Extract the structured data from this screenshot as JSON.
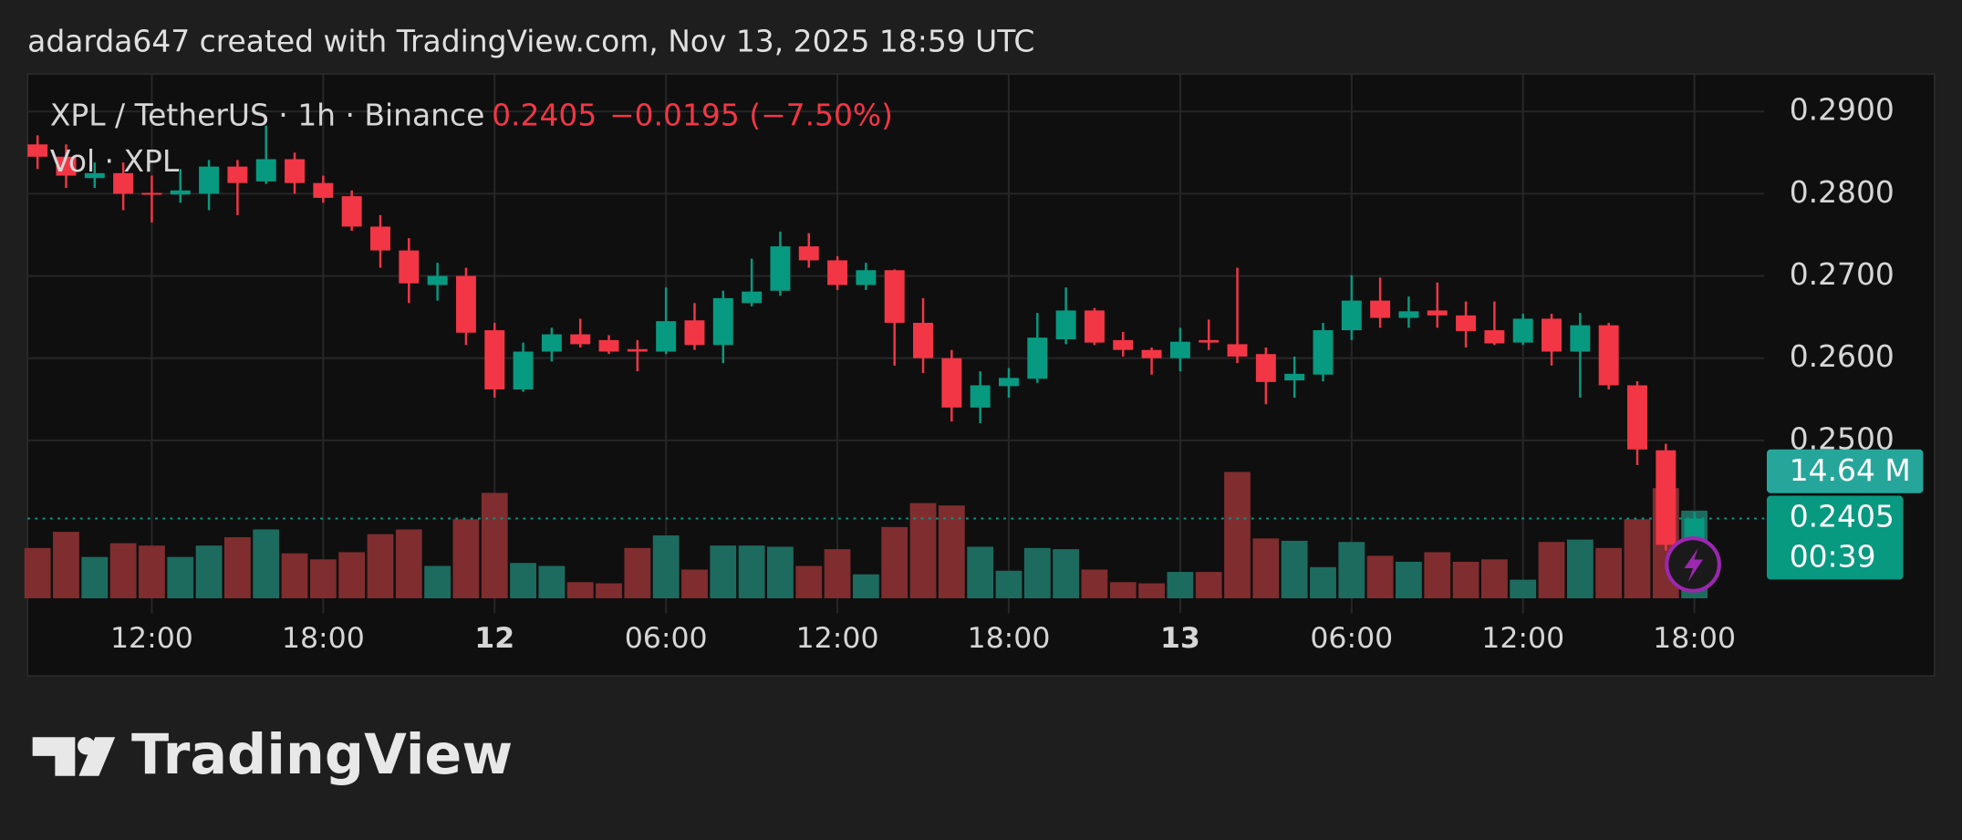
{
  "header": {
    "text": "adarda647 created with TradingView.com, Nov 13, 2025 18:59 UTC"
  },
  "footer": {
    "logo_text": "TradingView"
  },
  "chart_data": {
    "type": "candlestick",
    "title": "XPL / TetherUS · 1h · Binance",
    "change_label": "−0.0195 (−7.50%)",
    "countdown": "00:39",
    "up_color": "#089981",
    "down_color": "#f23645",
    "grid": true,
    "categories": [
      null,
      null,
      null,
      null,
      "12:00",
      null,
      null,
      null,
      null,
      null,
      "18:00",
      null,
      null,
      null,
      null,
      null,
      "12",
      null,
      null,
      null,
      null,
      null,
      "06:00",
      null,
      null,
      null,
      null,
      null,
      "12:00",
      null,
      null,
      null,
      null,
      null,
      "18:00",
      null,
      null,
      null,
      null,
      null,
      "13",
      null,
      null,
      null,
      null,
      null,
      "06:00",
      null,
      null,
      null,
      null,
      null,
      "12:00",
      null,
      null,
      null,
      null,
      null,
      "18:00"
    ],
    "open": [
      0.286,
      0.2845,
      0.2819,
      0.2825,
      0.2801,
      0.2799,
      0.28,
      0.2833,
      0.2815,
      0.2842,
      0.2813,
      0.2797,
      0.276,
      0.2731,
      0.2689,
      0.27,
      0.2634,
      0.2562,
      0.2608,
      0.2629,
      0.2622,
      0.2611,
      0.2608,
      0.2646,
      0.2616,
      0.2667,
      0.2682,
      0.2736,
      0.2719,
      0.2689,
      0.2707,
      0.2643,
      0.26,
      0.254,
      0.2566,
      0.2575,
      0.2623,
      0.2658,
      0.2622,
      0.261,
      0.26,
      0.2622,
      0.2617,
      0.2605,
      0.2573,
      0.258,
      0.2634,
      0.267,
      0.2649,
      0.2658,
      0.2652,
      0.2634,
      0.2619,
      0.2648,
      0.2608,
      0.264,
      0.2567,
      0.2488,
      0.2373
    ],
    "high": [
      0.2871,
      0.286,
      0.2838,
      0.2838,
      0.2822,
      0.283,
      0.2841,
      0.2841,
      0.2883,
      0.285,
      0.2822,
      0.2804,
      0.2774,
      0.2746,
      0.2716,
      0.271,
      0.2643,
      0.2619,
      0.2637,
      0.2648,
      0.2628,
      0.2622,
      0.2686,
      0.2667,
      0.2682,
      0.2721,
      0.2754,
      0.2752,
      0.2724,
      0.2716,
      0.2708,
      0.2673,
      0.261,
      0.2584,
      0.2588,
      0.2655,
      0.2686,
      0.2661,
      0.2632,
      0.2613,
      0.2637,
      0.2647,
      0.271,
      0.2613,
      0.2602,
      0.2643,
      0.2701,
      0.2698,
      0.2675,
      0.2692,
      0.2669,
      0.2669,
      0.2654,
      0.2654,
      0.2655,
      0.2643,
      0.2572,
      0.2496,
      0.2413
    ],
    "low": [
      0.283,
      0.2807,
      0.2807,
      0.278,
      0.2765,
      0.2789,
      0.278,
      0.2774,
      0.2812,
      0.28,
      0.2789,
      0.2755,
      0.271,
      0.2667,
      0.267,
      0.2616,
      0.2552,
      0.2559,
      0.2596,
      0.2613,
      0.2605,
      0.2584,
      0.2605,
      0.261,
      0.2594,
      0.2663,
      0.2676,
      0.271,
      0.2683,
      0.2683,
      0.2591,
      0.2582,
      0.2523,
      0.2521,
      0.2552,
      0.257,
      0.2617,
      0.2616,
      0.2602,
      0.258,
      0.2584,
      0.261,
      0.2594,
      0.2544,
      0.2552,
      0.2572,
      0.2622,
      0.2637,
      0.2637,
      0.2637,
      0.2613,
      0.2616,
      0.2616,
      0.2591,
      0.2552,
      0.2562,
      0.247,
      0.2366,
      0.2366
    ],
    "close": [
      0.2845,
      0.2822,
      0.2825,
      0.28,
      0.2799,
      0.2804,
      0.2833,
      0.2813,
      0.2842,
      0.2813,
      0.2795,
      0.276,
      0.2731,
      0.2691,
      0.27,
      0.2631,
      0.2562,
      0.2608,
      0.2629,
      0.2617,
      0.2608,
      0.2608,
      0.2645,
      0.2616,
      0.2673,
      0.2681,
      0.2736,
      0.2719,
      0.2689,
      0.2707,
      0.2643,
      0.26,
      0.254,
      0.2567,
      0.2576,
      0.2625,
      0.2658,
      0.2619,
      0.261,
      0.26,
      0.262,
      0.2619,
      0.2602,
      0.2571,
      0.2581,
      0.2634,
      0.267,
      0.2649,
      0.2657,
      0.2652,
      0.2633,
      0.2618,
      0.2648,
      0.2608,
      0.264,
      0.2567,
      0.2489,
      0.2373,
      0.2405
    ],
    "volume": {
      "name": "Vol · XPL",
      "values": [
        8.4,
        11.1,
        6.9,
        9.2,
        8.8,
        6.9,
        8.8,
        10.2,
        11.5,
        7.5,
        6.5,
        7.7,
        10.7,
        11.5,
        5.4,
        13.2,
        17.6,
        5.9,
        5.4,
        2.7,
        2.5,
        8.4,
        10.5,
        4.8,
        8.8,
        8.8,
        8.6,
        5.4,
        8.2,
        4.0,
        11.9,
        15.9,
        15.5,
        8.6,
        4.6,
        8.4,
        8.2,
        4.8,
        2.7,
        2.5,
        4.4,
        4.4,
        21.1,
        10.0,
        9.6,
        5.2,
        9.4,
        7.1,
        6.1,
        7.7,
        6.1,
        6.5,
        3.1,
        9.4,
        9.8,
        8.4,
        13.2,
        18.4,
        14.64
      ],
      "last_label": {
        "value": 14.64,
        "label": "14.64 M"
      },
      "up_color": "#1d6b5f",
      "down_color": "#7f2d2f"
    },
    "ylim": [
      0.2308,
      0.2944
    ],
    "yticks": [
      {
        "value": 0.29,
        "label": "0.2900"
      },
      {
        "value": 0.28,
        "label": "0.2800"
      },
      {
        "value": 0.27,
        "label": "0.2700"
      },
      {
        "value": 0.26,
        "label": "0.2600"
      },
      {
        "value": 0.25,
        "label": "0.2500"
      }
    ]
  }
}
